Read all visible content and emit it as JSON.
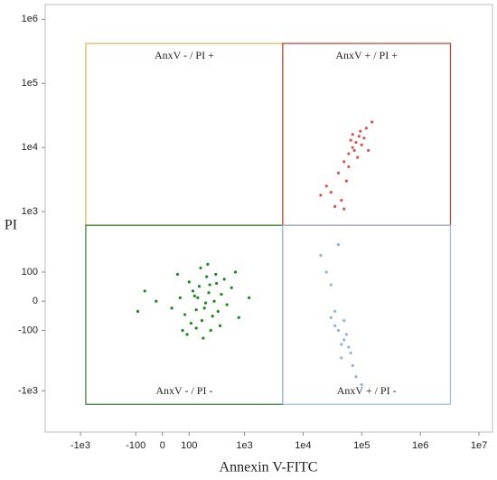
{
  "chart_data": {
    "type": "scatter",
    "xlabel": "Annexin V-FITC",
    "ylabel": "PI",
    "xscale": "asinh",
    "yscale": "asinh",
    "scale_width": 80,
    "xlim": [
      -4000,
      17000000
    ],
    "ylim": [
      -4400,
      1700000
    ],
    "xticks": [
      {
        "value": -1000,
        "label": "-1e3"
      },
      -100,
      0,
      100,
      {
        "value": 1000,
        "label": "1e3"
      },
      {
        "value": 10000,
        "label": "1e4"
      },
      {
        "value": 100000,
        "label": "1e5"
      },
      {
        "value": 1000000,
        "label": "1e6"
      },
      {
        "value": 10000000,
        "label": "1e7"
      }
    ],
    "yticks": [
      {
        "value": -1000,
        "label": "-1e3"
      },
      -100,
      0,
      100,
      {
        "value": 1000,
        "label": "1e3"
      },
      {
        "value": 10000,
        "label": "1e4"
      },
      {
        "value": 100000,
        "label": "1e5"
      },
      {
        "value": 1000000,
        "label": "1e6"
      }
    ],
    "gates": [
      {
        "label": "AnxV - / PI +",
        "x": [
          -810,
          4500
        ],
        "y": [
          610,
          420000
        ],
        "color": "#d8b44c",
        "label_pos": "top"
      },
      {
        "label": "AnxV + / PI +",
        "x": [
          4500,
          3260000
        ],
        "y": [
          610,
          420000
        ],
        "color": "#c0392b",
        "label_pos": "top"
      },
      {
        "label": "AnxV - / PI -",
        "x": [
          -810,
          4500
        ],
        "y": [
          -1620,
          610
        ],
        "color": "#2e7d32",
        "label_pos": "bottom"
      },
      {
        "label": "AnxV + / PI -",
        "x": [
          4500,
          3260000
        ],
        "y": [
          -1620,
          610
        ],
        "color": "#9ab8e0",
        "label_pos": "bottom"
      }
    ],
    "series": [
      {
        "color": "#1a8a1a",
        "points": [
          [
            150,
            10
          ],
          [
            200,
            -20
          ],
          [
            120,
            30
          ],
          [
            300,
            0
          ],
          [
            80,
            -40
          ],
          [
            250,
            50
          ],
          [
            180,
            -60
          ],
          [
            400,
            20
          ],
          [
            60,
            10
          ],
          [
            220,
            80
          ],
          [
            140,
            -90
          ],
          [
            350,
            -30
          ],
          [
            100,
            60
          ],
          [
            500,
            -10
          ],
          [
            30,
            -20
          ],
          [
            260,
            -100
          ],
          [
            170,
            120
          ],
          [
            600,
            40
          ],
          [
            -20,
            0
          ],
          [
            90,
            -120
          ],
          [
            320,
            90
          ],
          [
            210,
            -5
          ],
          [
            130,
            15
          ],
          [
            800,
            -50
          ],
          [
            -60,
            30
          ],
          [
            450,
            70
          ],
          [
            190,
            -140
          ],
          [
            240,
            25
          ],
          [
            110,
            -70
          ],
          [
            700,
            100
          ],
          [
            160,
            45
          ],
          [
            280,
            -45
          ],
          [
            50,
            90
          ],
          [
            380,
            -80
          ],
          [
            1200,
            10
          ],
          [
            -90,
            -30
          ],
          [
            230,
            140
          ],
          [
            140,
            -25
          ],
          [
            330,
            55
          ],
          [
            70,
            -100
          ]
        ]
      },
      {
        "color": "#d9534f",
        "points": [
          [
            70000,
            10000
          ],
          [
            80000,
            12000
          ],
          [
            60000,
            8000
          ],
          [
            90000,
            15000
          ],
          [
            100000,
            11000
          ],
          [
            50000,
            6000
          ],
          [
            120000,
            20000
          ],
          [
            75000,
            9000
          ],
          [
            65000,
            13000
          ],
          [
            40000,
            4000
          ],
          [
            30000,
            2000
          ],
          [
            55000,
            3000
          ],
          [
            45000,
            1500
          ],
          [
            35000,
            1200
          ],
          [
            150000,
            25000
          ],
          [
            85000,
            7000
          ],
          [
            110000,
            14000
          ],
          [
            25000,
            2500
          ],
          [
            60000,
            5000
          ],
          [
            95000,
            18000
          ],
          [
            20000,
            1800
          ],
          [
            50000,
            1100
          ],
          [
            130000,
            9000
          ],
          [
            70000,
            16000
          ]
        ]
      },
      {
        "color": "#8fb3e0",
        "points": [
          [
            40000,
            -100
          ],
          [
            50000,
            -150
          ],
          [
            35000,
            -80
          ],
          [
            60000,
            -200
          ],
          [
            45000,
            -300
          ],
          [
            30000,
            50
          ],
          [
            55000,
            -120
          ],
          [
            70000,
            -400
          ],
          [
            25000,
            100
          ],
          [
            40000,
            300
          ],
          [
            50000,
            -60
          ],
          [
            65000,
            -250
          ],
          [
            80000,
            -600
          ],
          [
            35000,
            -30
          ],
          [
            100000,
            -800
          ],
          [
            20000,
            200
          ],
          [
            45000,
            -180
          ],
          [
            30000,
            -50
          ]
        ]
      }
    ]
  }
}
